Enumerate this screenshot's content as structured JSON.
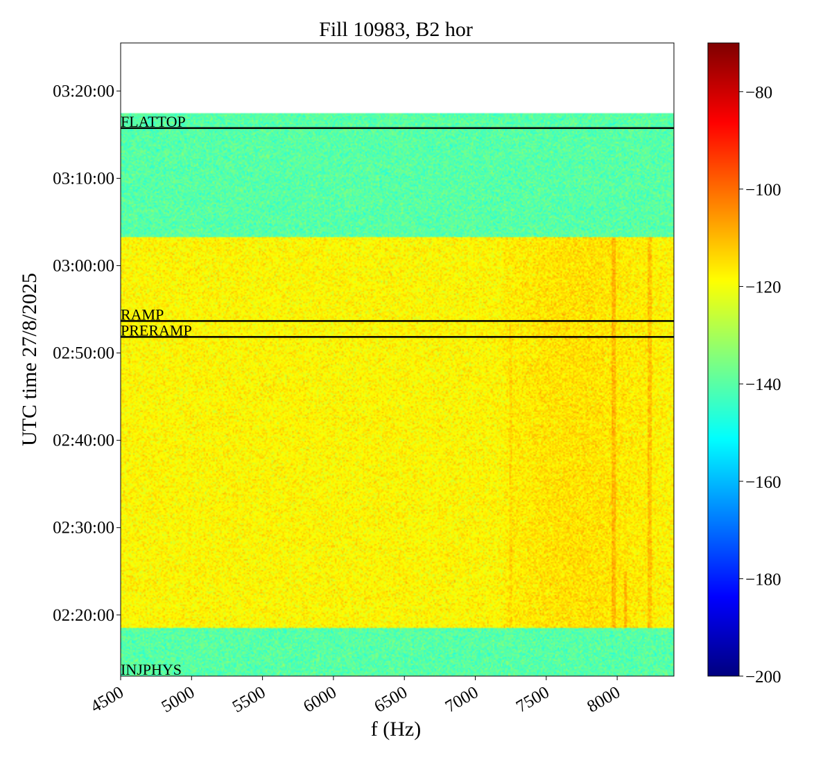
{
  "chart_data": {
    "type": "heatmap",
    "title": "Fill 10983, B2 hor",
    "xlabel": "f (Hz)",
    "ylabel": "UTC time 27/8/2025",
    "xlim": [
      4500,
      8400
    ],
    "ylim_seconds_of_day": [
      7980,
      12330
    ],
    "x_ticks": [
      4500,
      5000,
      5500,
      6000,
      6500,
      7000,
      7500,
      8000
    ],
    "x_tick_labels": [
      "4500",
      "5000",
      "5500",
      "6000",
      "6500",
      "7000",
      "7500",
      "8000"
    ],
    "y_ticks": [
      8400,
      9000,
      9600,
      10200,
      10800,
      11400,
      12000
    ],
    "y_tick_labels": [
      "02:20:00",
      "02:30:00",
      "02:40:00",
      "02:50:00",
      "03:00:00",
      "03:10:00",
      "03:20:00"
    ],
    "data_time_range": [
      "02:13:00",
      "03:17:27"
    ],
    "segments": [
      {
        "from": "02:13:00",
        "to": "02:18:30",
        "level": -140
      },
      {
        "from": "02:18:30",
        "to": "03:03:20",
        "level": -118
      },
      {
        "from": "03:03:20",
        "to": "03:17:27",
        "level": -140
      }
    ],
    "colorbar": {
      "colormap": "jet",
      "min": -200,
      "max": -70,
      "ticks": [
        -80,
        -100,
        -120,
        -140,
        -160,
        -180,
        -200
      ],
      "tick_labels": [
        "−80",
        "−100",
        "−120",
        "−140",
        "−160",
        "−180",
        "−200"
      ]
    },
    "phases": [
      {
        "name": "FLATTOP",
        "time": "03:15:45"
      },
      {
        "name": "RAMP",
        "time": "02:53:40"
      },
      {
        "name": "PRERAMP",
        "time": "02:51:50"
      },
      {
        "name": "INJPHYS",
        "time": "02:13:00"
      }
    ]
  }
}
